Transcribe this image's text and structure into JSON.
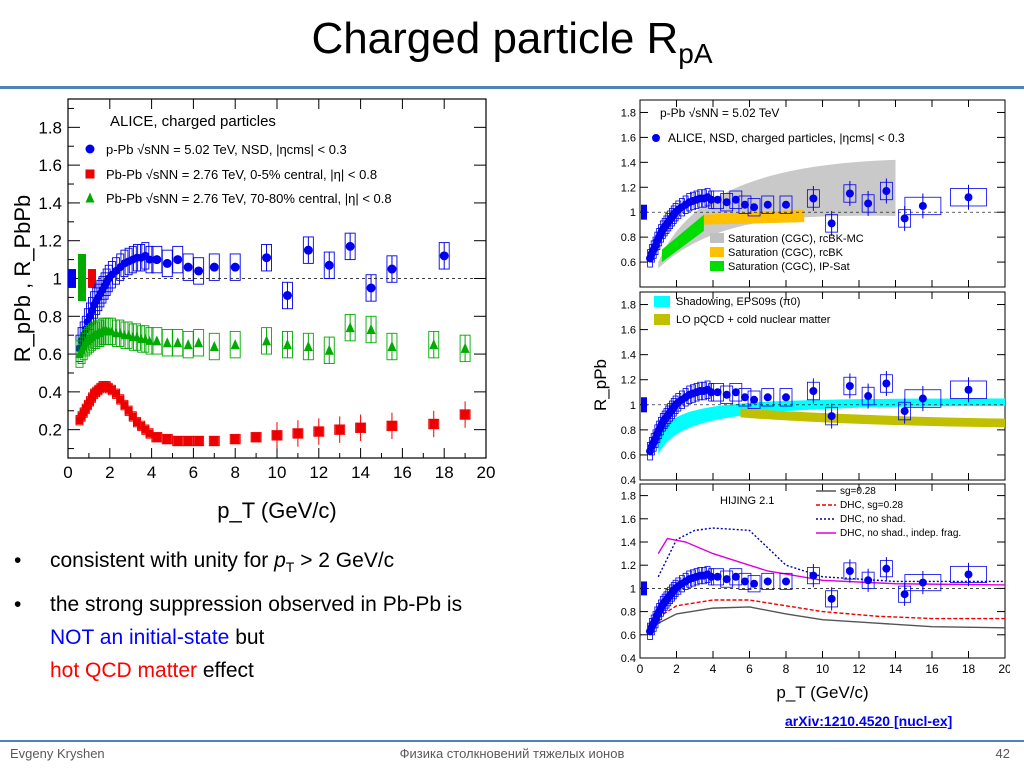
{
  "slide": {
    "title_main": "Charged particle R",
    "title_sub": "pA",
    "bullets": [
      {
        "parts": [
          {
            "t": "consistent with unity for ",
            "c": "black"
          },
          {
            "t": "p",
            "c": "black",
            "i": true
          },
          {
            "t": "T",
            "c": "black",
            "sub": true
          },
          {
            "t": " > 2 GeV/c",
            "c": "black"
          }
        ]
      },
      {
        "parts": [
          {
            "t": "the strong suppression observed in Pb-Pb is",
            "c": "black"
          },
          {
            "br": true
          },
          {
            "t": "NOT an initial-state",
            "c": "blue"
          },
          {
            "t": " but",
            "c": "black"
          },
          {
            "br": true
          },
          {
            "t": "hot QCD matter",
            "c": "red"
          },
          {
            "t": " effect",
            "c": "black"
          }
        ]
      }
    ],
    "arxiv_link": "arXiv:1210.4520 [nucl-ex]",
    "footer_author": "Evgeny Kryshen",
    "footer_center": "Физика столкновений тяжелых ионов",
    "page_number": "42",
    "colors": {
      "accent": "#4f81bd",
      "ppb": "#0000ee",
      "pbpb_central": "#ee0000",
      "pbpb_peripheral": "#00aa00",
      "link": "#0000ee"
    }
  },
  "chart_data": [
    {
      "type": "scatter",
      "title": "ALICE, charged particles",
      "xlabel": "p_T (GeV/c)",
      "ylabel": "R_pPb , R_PbPb",
      "xlim": [
        0,
        20
      ],
      "ylim": [
        0.05,
        1.95
      ],
      "xticks": [
        0,
        2,
        4,
        6,
        8,
        10,
        12,
        14,
        16,
        18,
        20
      ],
      "yticks": [
        0.2,
        0.4,
        0.6,
        0.8,
        1,
        1.2,
        1.4,
        1.6,
        1.8
      ],
      "reference_line": 1,
      "legend_position": "top-left",
      "series": [
        {
          "name": "p-Pb √sNN = 5.02 TeV, NSD, |ηcms| < 0.3",
          "marker": "circle",
          "color": "#0000ee",
          "x": [
            0.55,
            0.65,
            0.75,
            0.85,
            0.95,
            1.05,
            1.15,
            1.25,
            1.35,
            1.45,
            1.55,
            1.65,
            1.75,
            1.85,
            1.95,
            2.1,
            2.3,
            2.5,
            2.7,
            2.9,
            3.1,
            3.3,
            3.5,
            3.7,
            3.9,
            4.25,
            4.75,
            5.25,
            5.75,
            6.25,
            7,
            8,
            9.5,
            10.5,
            11.5,
            12.5,
            13.5,
            14.5,
            15.5,
            18
          ],
          "y": [
            0.63,
            0.67,
            0.7,
            0.73,
            0.77,
            0.8,
            0.83,
            0.86,
            0.88,
            0.9,
            0.92,
            0.94,
            0.96,
            0.98,
            1.0,
            1.02,
            1.04,
            1.06,
            1.08,
            1.09,
            1.1,
            1.11,
            1.11,
            1.12,
            1.1,
            1.1,
            1.08,
            1.1,
            1.06,
            1.04,
            1.06,
            1.06,
            1.11,
            0.91,
            1.15,
            1.07,
            1.17,
            0.95,
            1.05,
            1.12
          ]
        },
        {
          "name": "Pb-Pb √sNN = 2.76 TeV, 0-5% central, |η| < 0.8",
          "marker": "square",
          "color": "#ee0000",
          "x": [
            0.55,
            0.65,
            0.75,
            0.85,
            0.95,
            1.05,
            1.15,
            1.25,
            1.35,
            1.45,
            1.55,
            1.65,
            1.75,
            1.85,
            1.95,
            2.1,
            2.3,
            2.5,
            2.7,
            2.9,
            3.1,
            3.3,
            3.5,
            3.7,
            3.9,
            4.25,
            4.75,
            5.25,
            5.75,
            6.25,
            7,
            8,
            9,
            10,
            11,
            12,
            13,
            14,
            15.5,
            17.5,
            19
          ],
          "y": [
            0.25,
            0.27,
            0.29,
            0.31,
            0.33,
            0.35,
            0.37,
            0.39,
            0.4,
            0.41,
            0.42,
            0.43,
            0.43,
            0.43,
            0.42,
            0.41,
            0.39,
            0.36,
            0.33,
            0.3,
            0.27,
            0.24,
            0.22,
            0.2,
            0.18,
            0.16,
            0.15,
            0.14,
            0.14,
            0.14,
            0.14,
            0.15,
            0.16,
            0.17,
            0.18,
            0.19,
            0.2,
            0.21,
            0.22,
            0.23,
            0.28
          ]
        },
        {
          "name": "Pb-Pb √sNN = 2.76 TeV, 70-80% central, |η| < 0.8",
          "marker": "triangle",
          "color": "#00aa00",
          "x": [
            0.55,
            0.65,
            0.75,
            0.85,
            0.95,
            1.05,
            1.15,
            1.25,
            1.35,
            1.45,
            1.55,
            1.65,
            1.75,
            1.85,
            1.95,
            2.1,
            2.3,
            2.5,
            2.7,
            2.9,
            3.1,
            3.3,
            3.5,
            3.7,
            3.9,
            4.25,
            4.75,
            5.25,
            5.75,
            6.25,
            7,
            8,
            9.5,
            10.5,
            11.5,
            12.5,
            13.5,
            14.5,
            15.5,
            17.5,
            19
          ],
          "y": [
            0.6,
            0.62,
            0.64,
            0.66,
            0.67,
            0.68,
            0.69,
            0.7,
            0.7,
            0.71,
            0.71,
            0.72,
            0.72,
            0.72,
            0.72,
            0.72,
            0.71,
            0.71,
            0.7,
            0.7,
            0.69,
            0.69,
            0.68,
            0.68,
            0.67,
            0.67,
            0.66,
            0.66,
            0.65,
            0.66,
            0.64,
            0.65,
            0.67,
            0.65,
            0.64,
            0.62,
            0.74,
            0.73,
            0.64,
            0.65,
            0.63
          ]
        }
      ]
    },
    {
      "type": "scatter",
      "xlabel": "p_T (GeV/c)",
      "ylabel": "R_pPb",
      "xlim": [
        0,
        20
      ],
      "panels": [
        {
          "name": "saturation",
          "ylim": [
            0.4,
            1.9
          ],
          "yticks": [
            0.6,
            0.8,
            1,
            1.2,
            1.4,
            1.6,
            1.8
          ],
          "header": "p-Pb √sNN = 5.02 TeV",
          "data_label": "ALICE, NSD, charged particles, |ηcms| < 0.3",
          "legend": [
            {
              "name": "Saturation (CGC), rcBK-MC",
              "color": "#c0c0c0"
            },
            {
              "name": "Saturation (CGC), rcBK",
              "color": "#ffc000"
            },
            {
              "name": "Saturation (CGC), IP-Sat",
              "color": "#00dd00"
            }
          ]
        },
        {
          "name": "shadowing",
          "ylim": [
            0.4,
            1.9
          ],
          "yticks": [
            0.4,
            0.6,
            0.8,
            1,
            1.2,
            1.4,
            1.6,
            1.8
          ],
          "legend": [
            {
              "name": "Shadowing, EPS09s (π0)",
              "color": "#00ffff"
            },
            {
              "name": "LO pQCD + cold nuclear matter",
              "color": "#c0c000"
            }
          ]
        },
        {
          "name": "hijing",
          "ylim": [
            0.4,
            1.9
          ],
          "yticks": [
            0.4,
            0.6,
            0.8,
            1,
            1.2,
            1.4,
            1.6,
            1.8
          ],
          "header": "HIJING 2.1",
          "legend": [
            {
              "name": "sg=0.28",
              "color": "#555555",
              "style": "solid"
            },
            {
              "name": "DHC, sg=0.28",
              "color": "#ee0000",
              "style": "dashed"
            },
            {
              "name": "DHC, no shad.",
              "color": "#0000aa",
              "style": "dotted"
            },
            {
              "name": "DHC, no shad., indep. frag.",
              "color": "#dd00dd",
              "style": "solid"
            }
          ]
        }
      ],
      "xticks": [
        0,
        2,
        4,
        6,
        8,
        10,
        12,
        14,
        16,
        18,
        20
      ]
    }
  ]
}
